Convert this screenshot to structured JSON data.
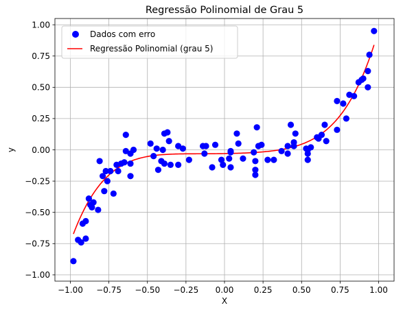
{
  "chart_data": {
    "type": "scatter",
    "title": "Regressão Polinomial de Grau 5",
    "xlabel": "X",
    "ylabel": "y",
    "xlim": [
      -1.1,
      1.1
    ],
    "ylim": [
      -1.05,
      1.05
    ],
    "xticks": [
      -1.0,
      -0.75,
      -0.5,
      -0.25,
      0.0,
      0.25,
      0.5,
      0.75,
      1.0
    ],
    "xtick_labels": [
      "−1.00",
      "−0.75",
      "−0.50",
      "−0.25",
      "0.00",
      "0.25",
      "0.50",
      "0.75",
      "1.00"
    ],
    "yticks": [
      -1.0,
      -0.75,
      -0.5,
      -0.25,
      0.0,
      0.25,
      0.5,
      0.75,
      1.0
    ],
    "ytick_labels": [
      "−1.00",
      "−0.75",
      "−0.50",
      "−0.25",
      "0.00",
      "0.25",
      "0.50",
      "0.75",
      "1.00"
    ],
    "grid": true,
    "legend_position": "upper-left",
    "series": [
      {
        "name": "Dados com erro",
        "kind": "scatter",
        "color": "#0000ff",
        "points": [
          [
            -0.98,
            -0.89
          ],
          [
            -0.95,
            -0.72
          ],
          [
            -0.93,
            -0.74
          ],
          [
            -0.92,
            -0.59
          ],
          [
            -0.9,
            -0.71
          ],
          [
            -0.9,
            -0.57
          ],
          [
            -0.88,
            -0.39
          ],
          [
            -0.87,
            -0.44
          ],
          [
            -0.86,
            -0.46
          ],
          [
            -0.85,
            -0.42
          ],
          [
            -0.82,
            -0.48
          ],
          [
            -0.81,
            -0.09
          ],
          [
            -0.79,
            -0.21
          ],
          [
            -0.78,
            -0.33
          ],
          [
            -0.77,
            -0.17
          ],
          [
            -0.76,
            -0.25
          ],
          [
            -0.74,
            -0.17
          ],
          [
            -0.72,
            -0.35
          ],
          [
            -0.7,
            -0.12
          ],
          [
            -0.69,
            -0.17
          ],
          [
            -0.67,
            -0.11
          ],
          [
            -0.65,
            -0.1
          ],
          [
            -0.64,
            -0.01
          ],
          [
            -0.64,
            0.12
          ],
          [
            -0.61,
            -0.03
          ],
          [
            -0.61,
            -0.21
          ],
          [
            -0.61,
            -0.11
          ],
          [
            -0.59,
            0.0
          ],
          [
            -0.48,
            0.05
          ],
          [
            -0.46,
            -0.05
          ],
          [
            -0.44,
            0.01
          ],
          [
            -0.43,
            -0.16
          ],
          [
            -0.41,
            -0.09
          ],
          [
            -0.4,
            0.0
          ],
          [
            -0.39,
            -0.11
          ],
          [
            -0.39,
            0.13
          ],
          [
            -0.37,
            0.14
          ],
          [
            -0.36,
            0.07
          ],
          [
            -0.35,
            -0.12
          ],
          [
            -0.3,
            -0.12
          ],
          [
            -0.3,
            0.03
          ],
          [
            -0.27,
            0.01
          ],
          [
            -0.23,
            -0.08
          ],
          [
            -0.14,
            0.03
          ],
          [
            -0.13,
            -0.03
          ],
          [
            -0.12,
            0.03
          ],
          [
            -0.08,
            -0.14
          ],
          [
            -0.06,
            0.04
          ],
          [
            -0.02,
            -0.08
          ],
          [
            -0.01,
            -0.12
          ],
          [
            0.03,
            -0.07
          ],
          [
            0.04,
            -0.01
          ],
          [
            0.04,
            -0.02
          ],
          [
            0.04,
            -0.14
          ],
          [
            0.08,
            0.13
          ],
          [
            0.09,
            0.05
          ],
          [
            0.12,
            -0.07
          ],
          [
            0.19,
            -0.02
          ],
          [
            0.2,
            -0.16
          ],
          [
            0.2,
            -0.2
          ],
          [
            0.2,
            -0.09
          ],
          [
            0.21,
            0.18
          ],
          [
            0.22,
            0.03
          ],
          [
            0.24,
            0.04
          ],
          [
            0.28,
            -0.08
          ],
          [
            0.32,
            -0.08
          ],
          [
            0.37,
            -0.01
          ],
          [
            0.41,
            0.03
          ],
          [
            0.41,
            -0.03
          ],
          [
            0.43,
            0.2
          ],
          [
            0.45,
            0.06
          ],
          [
            0.45,
            0.03
          ],
          [
            0.46,
            0.13
          ],
          [
            0.53,
            0.01
          ],
          [
            0.54,
            -0.08
          ],
          [
            0.54,
            -0.03
          ],
          [
            0.54,
            0.0
          ],
          [
            0.56,
            0.02
          ],
          [
            0.6,
            0.1
          ],
          [
            0.61,
            0.09
          ],
          [
            0.63,
            0.12
          ],
          [
            0.65,
            0.2
          ],
          [
            0.66,
            0.07
          ],
          [
            0.73,
            0.39
          ],
          [
            0.73,
            0.16
          ],
          [
            0.77,
            0.37
          ],
          [
            0.79,
            0.25
          ],
          [
            0.81,
            0.44
          ],
          [
            0.84,
            0.43
          ],
          [
            0.87,
            0.54
          ],
          [
            0.89,
            0.56
          ],
          [
            0.9,
            0.57
          ],
          [
            0.93,
            0.5
          ],
          [
            0.93,
            0.63
          ],
          [
            0.94,
            0.76
          ],
          [
            0.97,
            0.95
          ]
        ]
      },
      {
        "name": "Regressão Polinomial (grau 5)",
        "kind": "line",
        "color": "#ff0000",
        "coefficients": [
          -0.03,
          0.02,
          0.09,
          0.14,
          0.05,
          0.69
        ]
      }
    ]
  }
}
